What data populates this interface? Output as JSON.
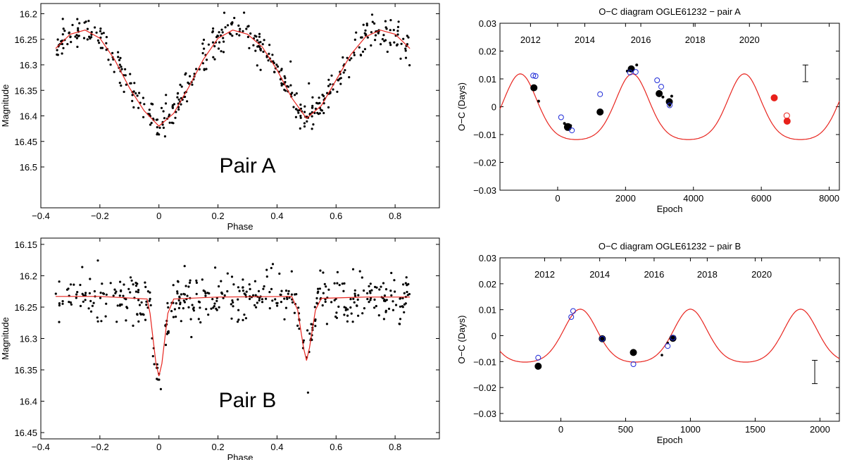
{
  "chart_data": [
    {
      "id": "lc-a",
      "type": "scatter",
      "title": "",
      "xlabel": "Phase",
      "ylabel": "Magnitude",
      "xlim": [
        -0.4,
        0.95
      ],
      "ylim": [
        16.18,
        16.58
      ],
      "y_inverted": true,
      "xticks": [
        -0.4,
        -0.2,
        0,
        0.2,
        0.4,
        0.6,
        0.8
      ],
      "xtick_labels": [
        "−0.4",
        "−0.2",
        "0",
        "0.2",
        "0.4",
        "0.6",
        "0.8"
      ],
      "yticks": [
        16.2,
        16.25,
        16.3,
        16.35,
        16.4,
        16.45,
        16.5
      ],
      "ytick_labels": [
        "16.2",
        "16.25",
        "16.3",
        "16.35",
        "16.4",
        "16.45",
        "16.5"
      ],
      "annotation": "Pair A",
      "colors": {
        "points": "#000000",
        "model": "#e8251f"
      },
      "model": {
        "name": "model light curve",
        "phase": [
          -0.35,
          -0.3,
          -0.25,
          -0.2,
          -0.15,
          -0.1,
          -0.05,
          0.0,
          0.05,
          0.1,
          0.15,
          0.2,
          0.25,
          0.3,
          0.35,
          0.4,
          0.45,
          0.5,
          0.55,
          0.6,
          0.65,
          0.7,
          0.75,
          0.8,
          0.85
        ],
        "mag": [
          16.268,
          16.24,
          16.232,
          16.248,
          16.29,
          16.345,
          16.39,
          16.42,
          16.395,
          16.345,
          16.29,
          16.248,
          16.232,
          16.24,
          16.265,
          16.31,
          16.365,
          16.405,
          16.38,
          16.33,
          16.28,
          16.245,
          16.232,
          16.24,
          16.268
        ]
      }
    },
    {
      "id": "lc-b",
      "type": "scatter",
      "title": "",
      "xlabel": "Phase",
      "ylabel": "Magnitude",
      "xlim": [
        -0.4,
        0.95
      ],
      "ylim": [
        16.14,
        16.46
      ],
      "y_inverted": true,
      "xticks": [
        -0.4,
        -0.2,
        0,
        0.2,
        0.4,
        0.6,
        0.8
      ],
      "xtick_labels": [
        "−0.4",
        "−0.2",
        "0",
        "0.2",
        "0.4",
        "0.6",
        "0.8"
      ],
      "yticks": [
        16.15,
        16.2,
        16.25,
        16.3,
        16.35,
        16.4,
        16.45
      ],
      "ytick_labels": [
        "16.15",
        "16.2",
        "16.25",
        "16.3",
        "16.35",
        "16.4",
        "16.45"
      ],
      "annotation": "Pair B",
      "colors": {
        "points": "#000000",
        "model": "#e8251f"
      },
      "model": {
        "name": "model light curve",
        "phase": [
          -0.35,
          -0.2,
          -0.04,
          -0.03,
          -0.02,
          -0.01,
          0.0,
          0.01,
          0.02,
          0.03,
          0.05,
          0.2,
          0.45,
          0.47,
          0.48,
          0.49,
          0.5,
          0.51,
          0.52,
          0.53,
          0.55,
          0.7,
          0.85
        ],
        "mag": [
          16.233,
          16.233,
          16.237,
          16.26,
          16.3,
          16.34,
          16.36,
          16.34,
          16.3,
          16.26,
          16.237,
          16.234,
          16.233,
          16.255,
          16.285,
          16.315,
          16.335,
          16.315,
          16.285,
          16.255,
          16.236,
          16.234,
          16.234
        ]
      }
    },
    {
      "id": "oc-a",
      "type": "scatter",
      "title": "O−C diagram OGLE61232 − pair A",
      "xlabel": "Epoch",
      "ylabel": "O−C (Days)",
      "xlim": [
        -1700,
        8300
      ],
      "ylim": [
        -0.03,
        0.03
      ],
      "xticks": [
        0,
        2000,
        4000,
        6000,
        8000
      ],
      "xtick_labels": [
        "0",
        "2000",
        "4000",
        "6000",
        "8000"
      ],
      "yticks": [
        -0.03,
        -0.02,
        -0.01,
        0,
        0.01,
        0.02,
        0.03
      ],
      "ytick_labels": [
        "−0.03",
        "−0.02",
        "−0.01",
        "0",
        "0.01",
        "0.02",
        "0.03"
      ],
      "year_ticks": [
        {
          "epoch": -800,
          "label": "2012"
        },
        {
          "epoch": 800,
          "label": "2014"
        },
        {
          "epoch": 2450,
          "label": "2016"
        },
        {
          "epoch": 4050,
          "label": "2018"
        },
        {
          "epoch": 5650,
          "label": "2020"
        }
      ],
      "model": {
        "name": "LTTE fit",
        "amplitude": 0.0118,
        "period": 3300,
        "peak_epoch": -1100,
        "sharpness": 0.55
      },
      "error_bar": {
        "epoch": 7300,
        "center": 0.012,
        "half_width": 0.003
      },
      "series": [
        {
          "name": "black large",
          "epoch": [
            -700,
            1250,
            2170,
            2990,
            3290
          ],
          "oc": [
            0.0068,
            -0.0019,
            0.0136,
            0.0047,
            0.0018
          ],
          "r": 5
        },
        {
          "name": "black medium",
          "epoch": [
            300
          ],
          "oc": [
            -0.0073
          ],
          "r": 5.5
        },
        {
          "name": "black small",
          "epoch": [
            -560,
            200,
            380,
            2050,
            2330,
            3100,
            3360,
            3300
          ],
          "oc": [
            0.002,
            -0.006,
            -0.0068,
            0.0128,
            0.015,
            0.0035,
            0.0038,
            0.0005
          ],
          "r": 2
        },
        {
          "name": "blue open",
          "epoch": [
            -720,
            -650,
            1250,
            2130,
            2300,
            2930,
            3050,
            3300,
            100,
            420
          ],
          "oc": [
            0.0112,
            0.011,
            0.0045,
            0.0123,
            0.0125,
            0.0095,
            0.0072,
            0.0005,
            -0.0038,
            -0.0085
          ],
          "r": 3.5
        },
        {
          "name": "red filled",
          "epoch": [
            6380,
            6760
          ],
          "oc": [
            0.0032,
            -0.0052
          ],
          "r": 5
        },
        {
          "name": "red open",
          "epoch": [
            6750
          ],
          "oc": [
            -0.0032
          ],
          "r": 4
        }
      ],
      "colors": {
        "model": "#e8251f",
        "black": "#000000",
        "blue": "#1f2bd8",
        "red": "#e8201a"
      }
    },
    {
      "id": "oc-b",
      "type": "scatter",
      "title": "O−C diagram OGLE61232 − pair B",
      "xlabel": "Epoch",
      "ylabel": "O−C (Days)",
      "xlim": [
        -470,
        2150
      ],
      "ylim": [
        -0.033,
        0.03
      ],
      "xticks": [
        0,
        500,
        1000,
        1500,
        2000
      ],
      "xtick_labels": [
        "0",
        "500",
        "1000",
        "1500",
        "2000"
      ],
      "yticks": [
        -0.03,
        -0.02,
        -0.01,
        0,
        0.01,
        0.02,
        0.03
      ],
      "ytick_labels": [
        "−0.03",
        "−0.02",
        "−0.01",
        "0",
        "0.01",
        "0.02",
        "0.03"
      ],
      "year_ticks": [
        {
          "epoch": -125,
          "label": "2012"
        },
        {
          "epoch": 300,
          "label": "2014"
        },
        {
          "epoch": 720,
          "label": "2016"
        },
        {
          "epoch": 1130,
          "label": "2018"
        },
        {
          "epoch": 1550,
          "label": "2020"
        }
      ],
      "model": {
        "name": "LTTE fit",
        "amplitude": 0.0102,
        "period": 850,
        "peak_epoch": 150,
        "sharpness": 0.5
      },
      "error_bar": {
        "epoch": 1960,
        "center": -0.014,
        "half_width": 0.0045
      },
      "series": [
        {
          "name": "black large",
          "epoch": [
            -175,
            320,
            560,
            865
          ],
          "oc": [
            -0.0118,
            -0.0012,
            -0.0065,
            -0.001
          ],
          "r": 5
        },
        {
          "name": "black small",
          "epoch": [
            780,
            825
          ],
          "oc": [
            -0.0075,
            -0.0028
          ],
          "r": 1.8
        },
        {
          "name": "blue open",
          "epoch": [
            -175,
            80,
            95,
            320,
            560,
            825,
            865
          ],
          "oc": [
            -0.0085,
            0.0072,
            0.0095,
            -0.0012,
            -0.011,
            -0.004,
            -0.0008
          ],
          "r": 3.5
        }
      ],
      "colors": {
        "model": "#e8251f",
        "black": "#000000",
        "blue": "#1f2bd8",
        "red": "#e8201a"
      }
    }
  ]
}
